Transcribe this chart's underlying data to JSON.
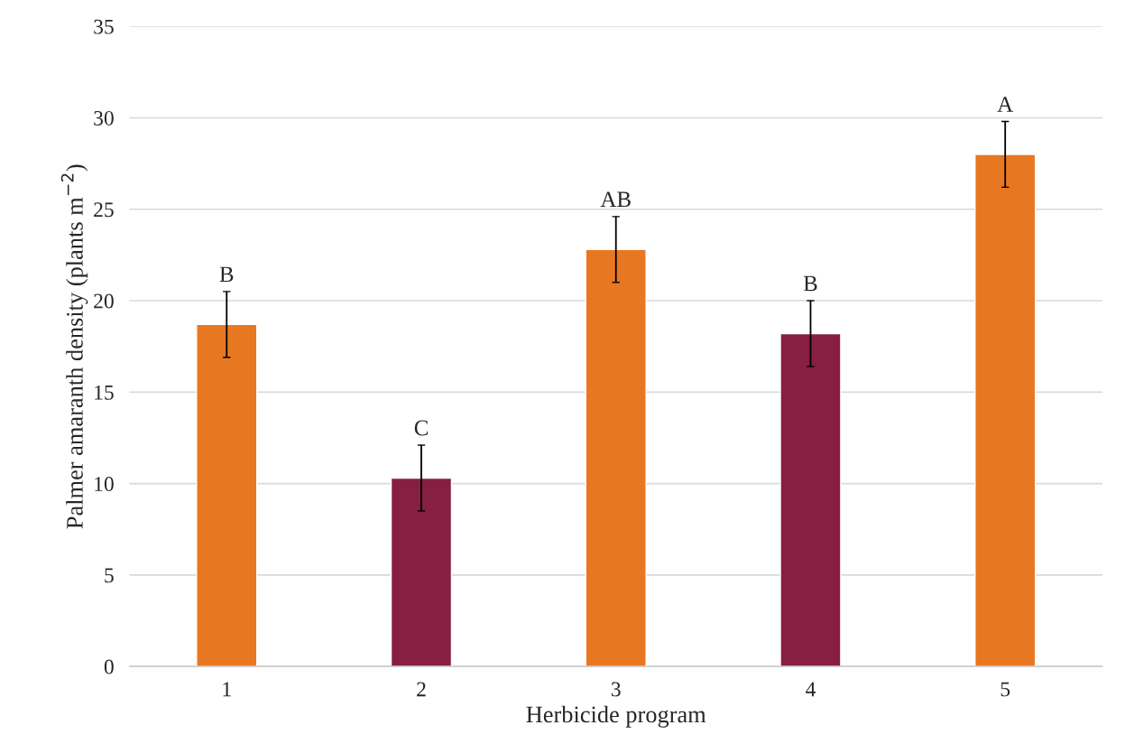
{
  "chart_data": {
    "type": "bar",
    "xlabel": "Herbicide program",
    "ylabel": "Palmer amaranth density (plants m$^{−2}$)",
    "categories": [
      "1",
      "2",
      "3",
      "4",
      "5"
    ],
    "values": [
      18.7,
      10.3,
      22.8,
      18.2,
      28.0
    ],
    "colors": [
      "#e87722",
      "#861f41",
      "#e87722",
      "#861f41",
      "#e87722"
    ],
    "errors": [
      1.8,
      1.8,
      1.8,
      1.8,
      1.8
    ],
    "ylim": [
      0,
      35
    ],
    "yticks": [
      0,
      5,
      10,
      15,
      20,
      25,
      30,
      35
    ],
    "grid": "y",
    "legend": false,
    "annotations": [
      {
        "text": "B",
        "x": "1",
        "y": 20.5
      },
      {
        "text": "C",
        "x": "2",
        "y": 12.1
      },
      {
        "text": "AB",
        "x": "3",
        "y": 24.6
      },
      {
        "text": "B",
        "x": "4",
        "y": 20.0
      },
      {
        "text": "A",
        "x": "5",
        "y": 29.8
      }
    ]
  }
}
